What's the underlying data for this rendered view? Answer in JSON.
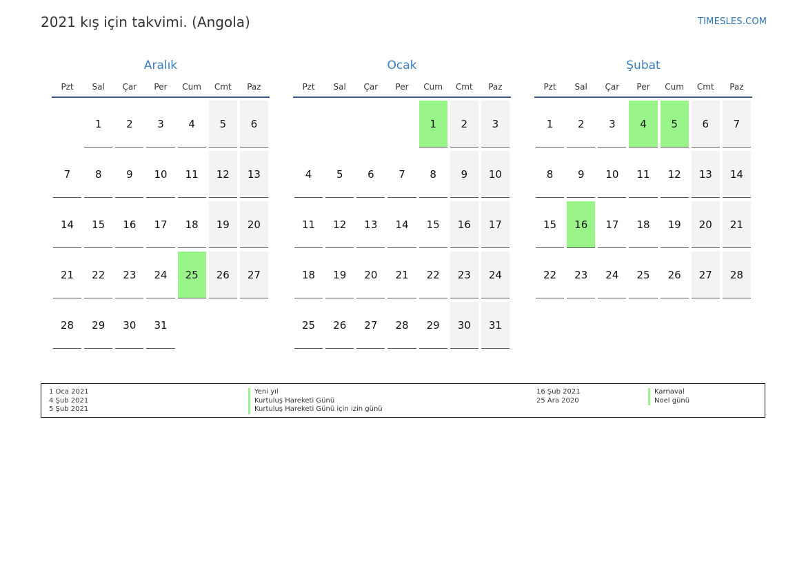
{
  "header": {
    "title": "2021 kış için takvimi. (Angola)",
    "site": "TIMESLES.COM"
  },
  "weekday_labels": [
    "Pzt",
    "Sal",
    "Çar",
    "Per",
    "Cum",
    "Cmt",
    "Paz"
  ],
  "months": [
    {
      "name": "Aralık",
      "weeks": [
        [
          "",
          "1",
          "2",
          "3",
          "4",
          "5",
          "6"
        ],
        [
          "7",
          "8",
          "9",
          "10",
          "11",
          "12",
          "13"
        ],
        [
          "14",
          "15",
          "16",
          "17",
          "18",
          "19",
          "20"
        ],
        [
          "21",
          "22",
          "23",
          "24",
          "25",
          "26",
          "27"
        ],
        [
          "28",
          "29",
          "30",
          "31",
          "",
          "",
          ""
        ]
      ],
      "holidays": [
        "25"
      ]
    },
    {
      "name": "Ocak",
      "weeks": [
        [
          "",
          "",
          "",
          "",
          "1",
          "2",
          "3"
        ],
        [
          "4",
          "5",
          "6",
          "7",
          "8",
          "9",
          "10"
        ],
        [
          "11",
          "12",
          "13",
          "14",
          "15",
          "16",
          "17"
        ],
        [
          "18",
          "19",
          "20",
          "21",
          "22",
          "23",
          "24"
        ],
        [
          "25",
          "26",
          "27",
          "28",
          "29",
          "30",
          "31"
        ]
      ],
      "holidays": [
        "1"
      ]
    },
    {
      "name": "Şubat",
      "weeks": [
        [
          "1",
          "2",
          "3",
          "4",
          "5",
          "6",
          "7"
        ],
        [
          "8",
          "9",
          "10",
          "11",
          "12",
          "13",
          "14"
        ],
        [
          "15",
          "16",
          "17",
          "18",
          "19",
          "20",
          "21"
        ],
        [
          "22",
          "23",
          "24",
          "25",
          "26",
          "27",
          "28"
        ]
      ],
      "holidays": [
        "4",
        "5",
        "16"
      ]
    }
  ],
  "legend": {
    "left": [
      {
        "date": "1 Oca 2021",
        "name": "Yeni yıl"
      },
      {
        "date": "4 Şub 2021",
        "name": "Kurtuluş Hareketi Günü"
      },
      {
        "date": "5 Şub 2021",
        "name": "Kurtuluş Hareketi Günü için izin günü"
      }
    ],
    "right": [
      {
        "date": "16 Şub 2021",
        "name": "Karnaval"
      },
      {
        "date": "25 Ara 2020",
        "name": "Noel günü"
      }
    ]
  },
  "colors": {
    "holiday": "#99f58a",
    "weekend": "#f3f3f3",
    "month_title": "#3a7ebf",
    "header_rule": "#405d86"
  }
}
